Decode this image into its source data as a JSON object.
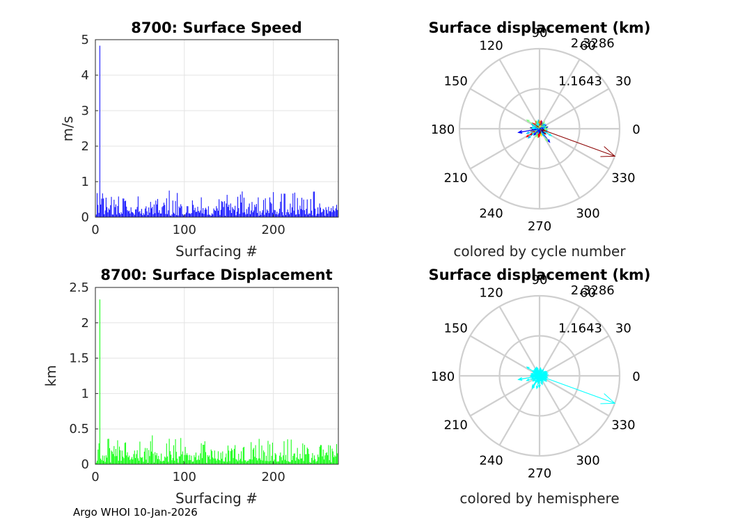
{
  "footer": {
    "credit": "Argo WHOI 10-Jan-2026"
  },
  "chart_data": [
    {
      "id": "speed",
      "type": "bar",
      "title": "8700: Surface Speed",
      "xlabel": "Surfacing #",
      "ylabel": "m/s",
      "xlim": [
        0,
        273
      ],
      "ylim": [
        0,
        5
      ],
      "xticks": [
        0,
        100,
        200
      ],
      "yticks": [
        0,
        1,
        2,
        3,
        4,
        5
      ],
      "color": "#0000ff",
      "grid": true,
      "peak": {
        "x": 5,
        "value": 4.83
      },
      "typical_max": 0.75,
      "n": 272
    },
    {
      "id": "polar-cycle",
      "type": "polar-compass",
      "title": "Surface displacement (km)",
      "caption": "colored by cycle number",
      "rmax": 2.3286,
      "radial_labels": [
        "1.1643",
        "2.3286"
      ],
      "angle_labels": [
        "0",
        "30",
        "60",
        "90",
        "120",
        "150",
        "180",
        "210",
        "240",
        "270",
        "300",
        "330"
      ],
      "colormap": [
        "#00008b",
        "#0000ff",
        "#00bfff",
        "#00ffff",
        "#7fff7f",
        "#ffff00",
        "#ff8000",
        "#ff0000",
        "#8b0000"
      ],
      "max_vector": {
        "magnitude": 2.33,
        "angle": 340,
        "color": "#8b0000"
      }
    },
    {
      "id": "displacement",
      "type": "bar",
      "title": "8700: Surface Displacement",
      "xlabel": "Surfacing #",
      "ylabel": "km",
      "xlim": [
        0,
        273
      ],
      "ylim": [
        0,
        2.5
      ],
      "xticks": [
        0,
        100,
        200
      ],
      "yticks": [
        0,
        0.5,
        1,
        1.5,
        2,
        2.5
      ],
      "color": "#00ff00",
      "grid": true,
      "peak": {
        "x": 5,
        "value": 2.33
      },
      "typical_max": 0.42,
      "n": 272
    },
    {
      "id": "polar-hemi",
      "type": "polar-compass",
      "title": "Surface displacement (km)",
      "caption": "colored by hemisphere",
      "rmax": 2.3286,
      "radial_labels": [
        "1.1643",
        "2.3286"
      ],
      "angle_labels": [
        "0",
        "30",
        "60",
        "90",
        "120",
        "150",
        "180",
        "210",
        "240",
        "270",
        "300",
        "330"
      ],
      "colormap": [
        "#00ffff"
      ],
      "max_vector": {
        "magnitude": 2.33,
        "angle": 340,
        "color": "#00ffff"
      }
    }
  ]
}
